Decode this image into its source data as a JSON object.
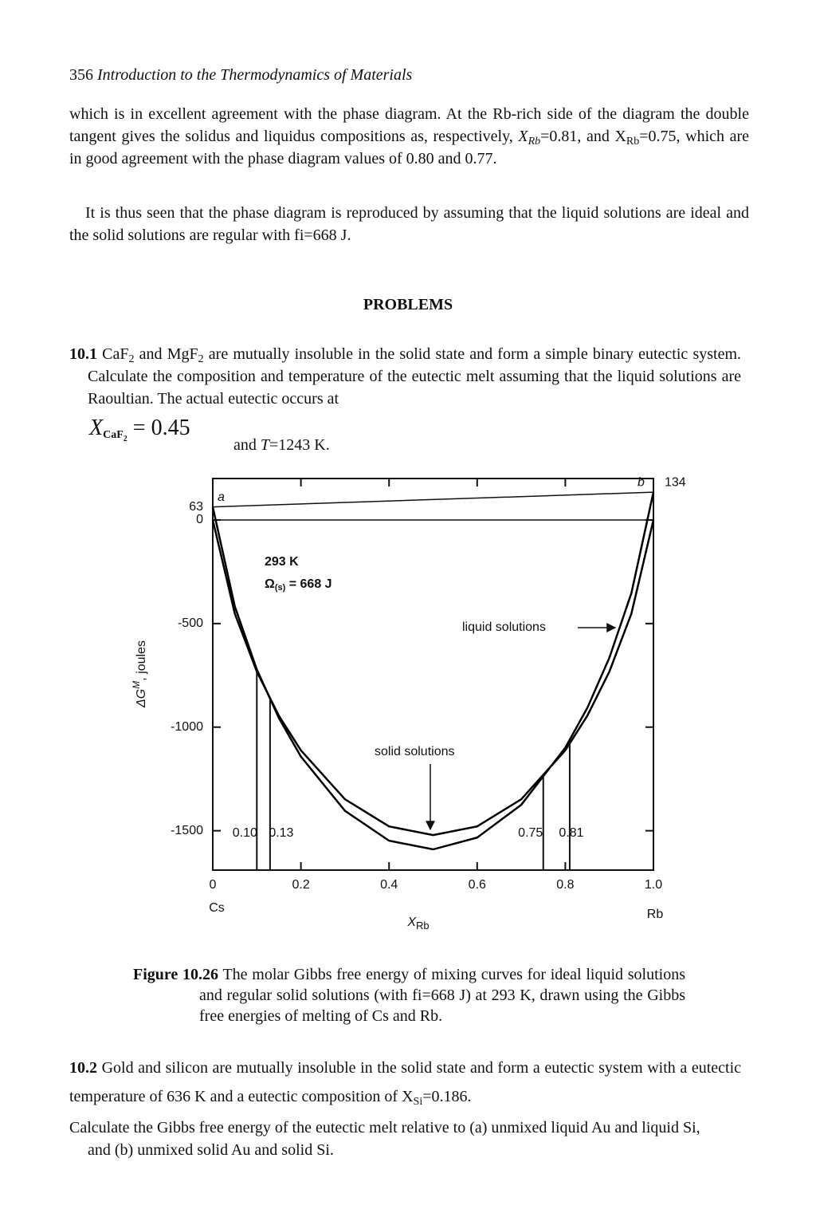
{
  "header": {
    "page_number": "356",
    "title": "Introduction to the Thermodynamics of Materials"
  },
  "paragraph_1": [
    "which is in excellent agreement with the phase diagram. At the Rb-rich side of the diagram the double tangent gives the solidus and liquidus compositions as, respectively, ",
    "X",
    "Rb",
    "=0.81, and X",
    "Rb",
    "=0.75, which are in good agreement with the phase diagram values of 0.80 and 0.77."
  ],
  "paragraph_2": "It is thus seen that the phase diagram is reproduced by assuming that the liquid solutions are ideal and the solid solutions are regular with fi=668 J.",
  "section_heading": "PROBLEMS",
  "problem_1": {
    "number": "10.1",
    "text": [
      "CaF",
      "2",
      " and MgF",
      "2",
      " are mutually insoluble in the solid state and form a simple binary eutectic system. Calculate the composition and temperature of the eutectic melt assuming that the liquid solutions are Raoultian. The actual eutectic occurs at"
    ],
    "formula": [
      "X",
      "CaF",
      "2",
      " = 0.45"
    ],
    "text_after": [
      "and ",
      "T",
      "=1243 K."
    ]
  },
  "caption": {
    "label": "Figure 10.26",
    "text": "The molar Gibbs free energy of mixing curves for ideal liquid solutions and regular solid solutions (with fi=668 J) at 293 K, drawn using the Gibbs free energies of melting of Cs and Rb."
  },
  "problem_2": {
    "number": "10.2",
    "text": [
      "Gold and silicon are mutually insoluble in the solid state and form a eutectic system with a eutectic temperature of 636 K and a eutectic composition of X",
      "Si",
      "=0.186."
    ],
    "text_2": "Calculate the Gibbs free energy of the eutectic melt relative to (a) unmixed liquid Au and liquid Si, and (b) unmixed solid Au and solid Si."
  },
  "chart_data": {
    "type": "line",
    "y_label": [
      "ΔG",
      "M",
      ", joules"
    ],
    "x_label": [
      "X",
      "Rb"
    ],
    "end_labels": [
      "Cs",
      "Rb"
    ],
    "x": [
      0,
      0.05,
      0.1,
      0.15,
      0.2,
      0.3,
      0.4,
      0.5,
      0.6,
      0.7,
      0.8,
      0.85,
      0.9,
      0.95,
      1
    ],
    "series": [
      {
        "name": "liquid solutions",
        "color": "#000000",
        "values": [
          63,
          -417,
          -722,
          -956,
          -1142,
          -1404,
          -1548,
          -1590,
          -1533,
          -1375,
          -1099,
          -907,
          -665,
          -353,
          134
        ]
      },
      {
        "name": "solid solutions",
        "color": "#000000",
        "values": [
          0,
          -452,
          -732,
          -945,
          -1112,
          -1348,
          -1479,
          -1521,
          -1479,
          -1348,
          -1112,
          -945,
          -732,
          -452,
          0
        ]
      }
    ],
    "reference_line": {
      "x": [
        0,
        1
      ],
      "values": [
        63,
        134
      ],
      "labels": [
        "a",
        "b"
      ]
    },
    "annotations": [
      "293 K",
      [
        "Ω",
        "(s)",
        " = 668 J"
      ]
    ],
    "markers": [
      {
        "value": 0.1,
        "label": "0.10"
      },
      0.13,
      0.75,
      0.81
    ],
    "xlim": [
      0,
      1
    ],
    "ylim": [
      -1690,
      200
    ],
    "xticks": [
      0,
      0.2,
      0.4,
      0.6,
      0.8,
      {
        "value": 1,
        "label": "1.0"
      }
    ],
    "yticks": [
      -1500,
      -1000,
      -500,
      0
    ]
  }
}
